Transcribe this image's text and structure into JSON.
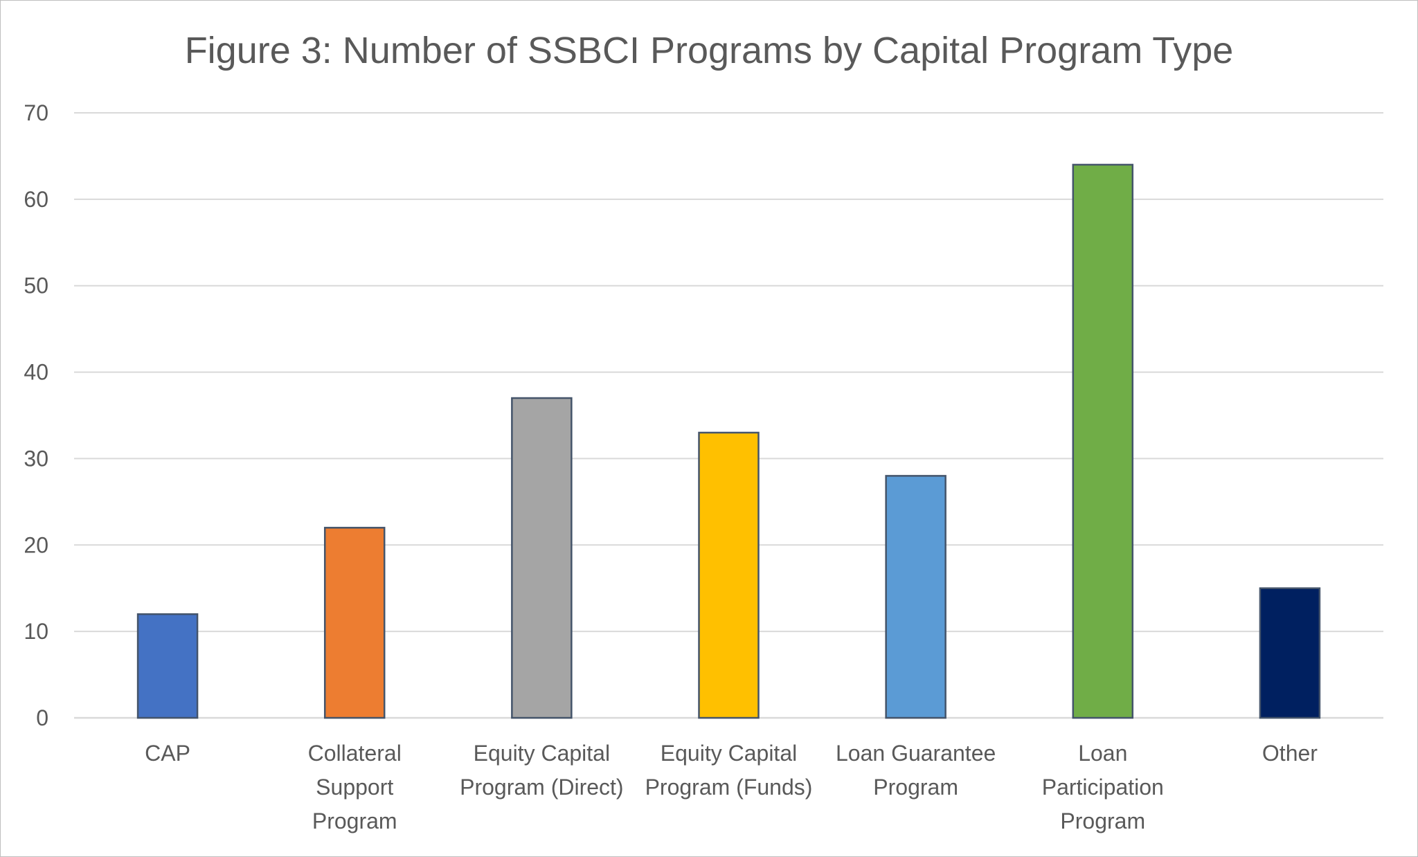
{
  "chart_data": {
    "type": "bar",
    "title": "Figure 3: Number of SSBCI Programs by Capital Program Type",
    "xlabel": "",
    "ylabel": "",
    "ylim": [
      0,
      70
    ],
    "yticks": [
      0,
      10,
      20,
      30,
      40,
      50,
      60,
      70
    ],
    "grid": true,
    "legend": "none",
    "categories": [
      [
        "CAP"
      ],
      [
        "Collateral",
        "Support",
        "Program"
      ],
      [
        "Equity Capital",
        "Program (Direct)"
      ],
      [
        "Equity Capital",
        "Program (Funds)"
      ],
      [
        "Loan Guarantee",
        "Program"
      ],
      [
        "Loan",
        "Participation",
        "Program"
      ],
      [
        "Other"
      ]
    ],
    "values": [
      12,
      22,
      37,
      33,
      28,
      64,
      15
    ],
    "colors": [
      "#4472C4",
      "#ED7D31",
      "#A5A5A5",
      "#FFC000",
      "#5B9BD5",
      "#70AD47",
      "#002060"
    ],
    "bar_outline_color": "#44546A",
    "gridline_color": "#d9d9d9",
    "text_color": "#595959"
  }
}
